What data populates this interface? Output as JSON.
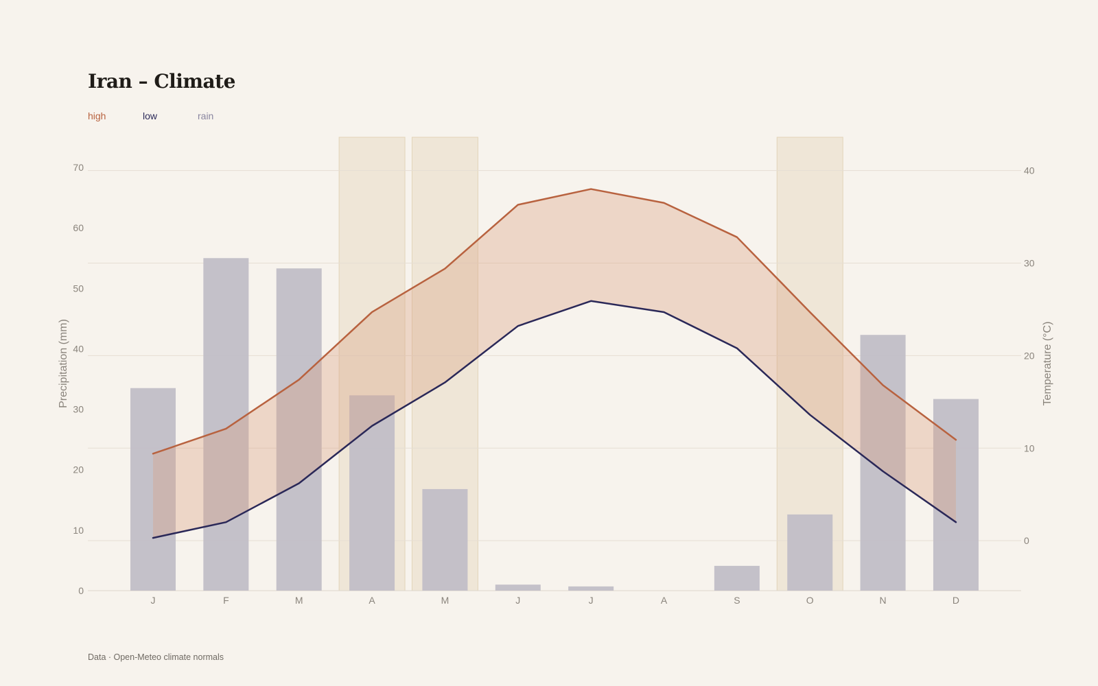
{
  "title": "Iran – Climate",
  "footer": "Data · Open-Meteo climate normals",
  "legend": [
    {
      "label": "high",
      "color": "#b8623f"
    },
    {
      "label": "low",
      "color": "#2a2858"
    },
    {
      "label": "rain",
      "color": "#8a86a0"
    }
  ],
  "chart_data": {
    "type": "bar",
    "categories": [
      "J",
      "F",
      "M",
      "A",
      "M",
      "J",
      "J",
      "A",
      "S",
      "O",
      "N",
      "D"
    ],
    "series": [
      {
        "name": "rain",
        "type": "bar",
        "axis": "left",
        "color": "#c1bec7",
        "values": [
          33.5,
          55,
          53.3,
          32.3,
          16.8,
          1.0,
          0.7,
          0,
          4.1,
          12.6,
          42.3,
          31.7
        ]
      },
      {
        "name": "high",
        "type": "line",
        "axis": "right",
        "color": "#b8623f",
        "values": [
          9.4,
          12.1,
          17.4,
          24.7,
          29.4,
          36.3,
          38.0,
          36.5,
          32.8,
          24.7,
          16.8,
          10.9
        ]
      },
      {
        "name": "low",
        "type": "line",
        "axis": "right",
        "color": "#2a2858",
        "values": [
          0.3,
          2.0,
          6.2,
          12.4,
          17.1,
          23.2,
          25.9,
          24.7,
          20.8,
          13.6,
          7.5,
          2.0
        ]
      }
    ],
    "highlight_months": [
      3,
      4,
      9
    ],
    "ylabel": "Precipitation (mm)",
    "y2label": "Temperature (°C)",
    "ylim": [
      0,
      75
    ],
    "y2lim": [
      -5.4,
      43.6
    ],
    "yticks": [
      0,
      10,
      20,
      30,
      40,
      50,
      60,
      70
    ],
    "y2ticks": [
      0,
      10,
      20,
      30,
      40
    ],
    "grid": "horizontal"
  }
}
